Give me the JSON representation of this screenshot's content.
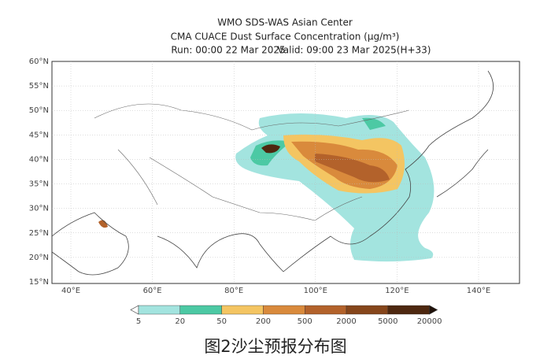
{
  "header": {
    "title": "WMO SDS-WAS Asian Center",
    "subtitle": "CMA CUACE Dust Surface Concentration (μg/m³)",
    "run": "Run: 00:00 22 Mar 2025",
    "valid": "Valid: 09:00 23 Mar 2025(H+33)"
  },
  "map": {
    "lat_labels": [
      "60°N",
      "55°N",
      "50°N",
      "45°N",
      "40°N",
      "35°N",
      "30°N",
      "25°N",
      "20°N",
      "15°N"
    ],
    "lon_labels": [
      "40°E",
      "60°E",
      "80°E",
      "100°E",
      "120°E",
      "140°E"
    ]
  },
  "legend": {
    "levels": [
      5,
      20,
      50,
      200,
      500,
      2000,
      5000,
      20000
    ],
    "colors": [
      "#a3e4df",
      "#4cc9a4",
      "#f4c562",
      "#d98a3c",
      "#b3622b",
      "#86461b",
      "#4e2810"
    ]
  },
  "caption": "图2沙尘预报分布图"
}
